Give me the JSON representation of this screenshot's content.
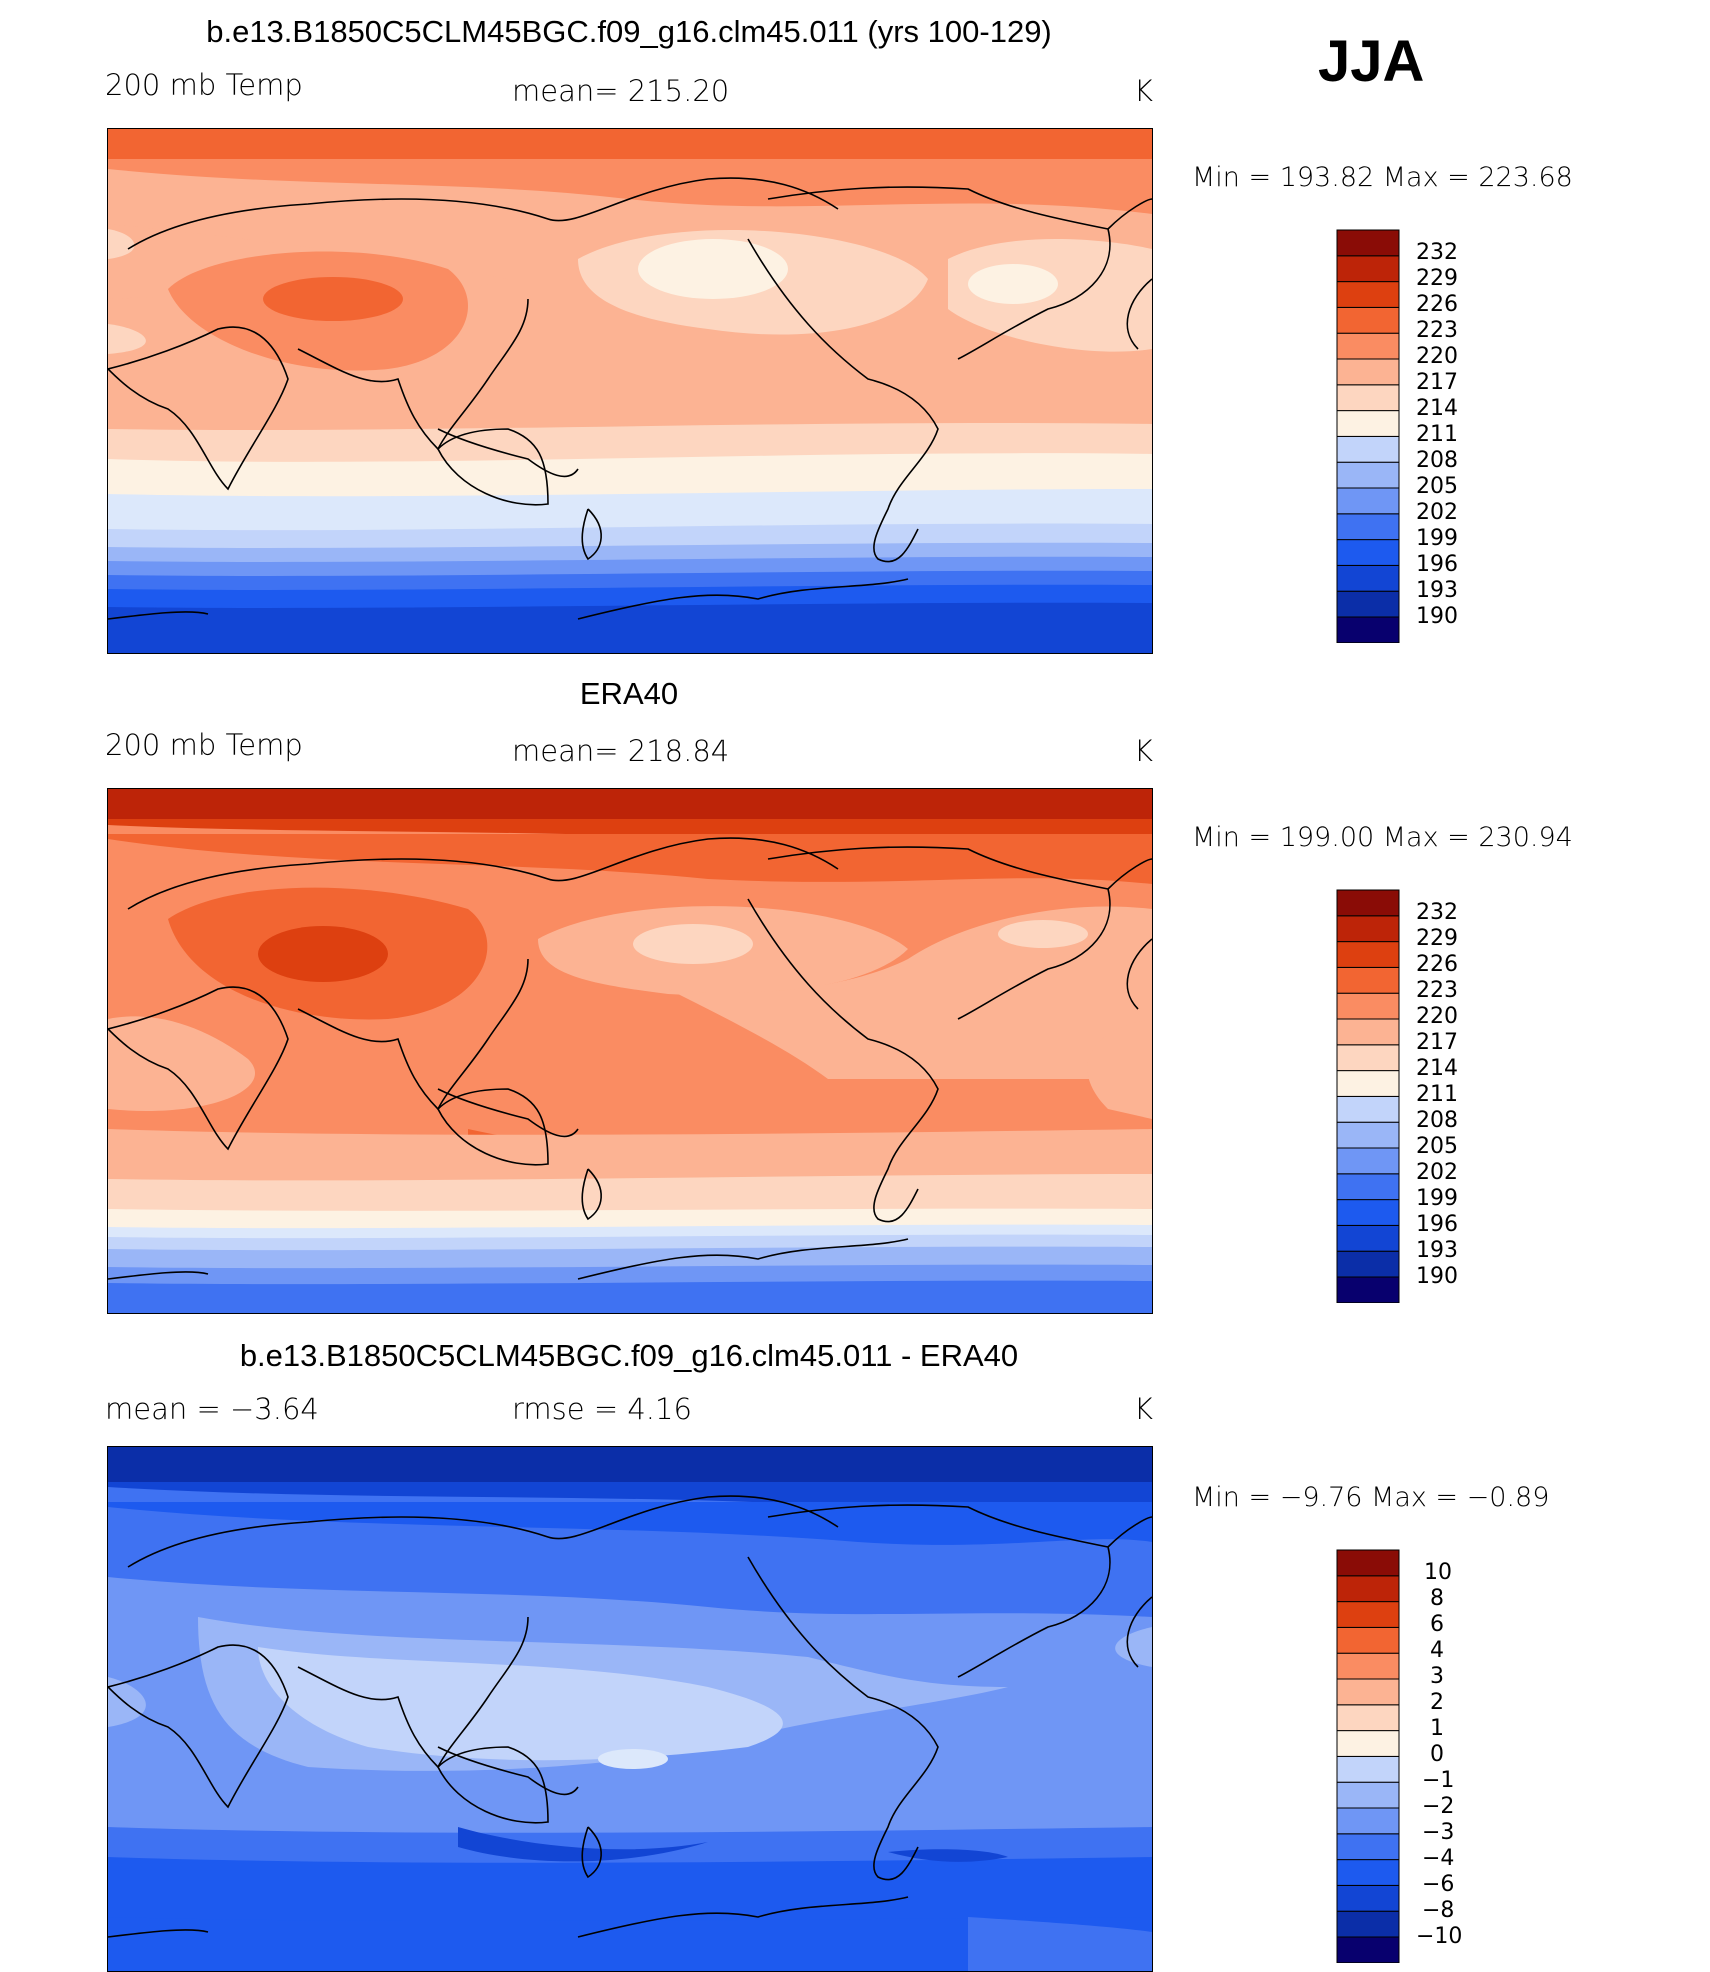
{
  "season": "JJA",
  "colors": {
    "temp_scale": [
      "#08006e",
      "#0b2ea8",
      "#1245d4",
      "#1d5aef",
      "#3f72f2",
      "#6f96f5",
      "#9ab6f7",
      "#c2d4fa",
      "#dce8fb",
      "#fdf2e3",
      "#fdd6c0",
      "#fcb393",
      "#fa8c62",
      "#f26532",
      "#dd4010",
      "#bd2408",
      "#8a0c06"
    ],
    "diff_scale": [
      "#08006e",
      "#0b2ea8",
      "#1245d4",
      "#1d5aef",
      "#3f72f2",
      "#6f96f5",
      "#9ab6f7",
      "#c2d4fa",
      "#dce8fb",
      "#fdf2e3",
      "#fdd6c0",
      "#fcb393",
      "#fa8c62",
      "#f26532",
      "#dd4010",
      "#bd2408",
      "#8a0c06"
    ]
  },
  "panels": [
    {
      "title": "b.e13.B1850C5CLM45BGC.f09_g16.clm45.011 (yrs 100-129)",
      "left_label": "200 mb Temp",
      "center_label": "mean=  215.20",
      "units": "K",
      "minmax": "Min  =  193.82  Max  =  223.68",
      "colorbar_labels": [
        "232",
        "229",
        "226",
        "223",
        "220",
        "217",
        "214",
        "211",
        "208",
        "205",
        "202",
        "199",
        "196",
        "193",
        "190"
      ]
    },
    {
      "title": "ERA40",
      "left_label": "200 mb Temp",
      "center_label": "mean=  218.84",
      "units": "K",
      "minmax": "Min  =  199.00  Max  =  230.94",
      "colorbar_labels": [
        "232",
        "229",
        "226",
        "223",
        "220",
        "217",
        "214",
        "211",
        "208",
        "205",
        "202",
        "199",
        "196",
        "193",
        "190"
      ]
    },
    {
      "title": "b.e13.B1850C5CLM45BGC.f09_g16.clm45.011 - ERA40",
      "left_label": "mean  =    −3.64",
      "center_label": "rmse  =     4.16",
      "units": "K",
      "minmax": "Min  =    −9.76  Max  =    −0.89",
      "colorbar_labels": [
        "10",
        "8",
        "6",
        "4",
        "3",
        "2",
        "1",
        "0",
        "−1",
        "−2",
        "−3",
        "−4",
        "−6",
        "−8",
        "−10"
      ]
    }
  ]
}
